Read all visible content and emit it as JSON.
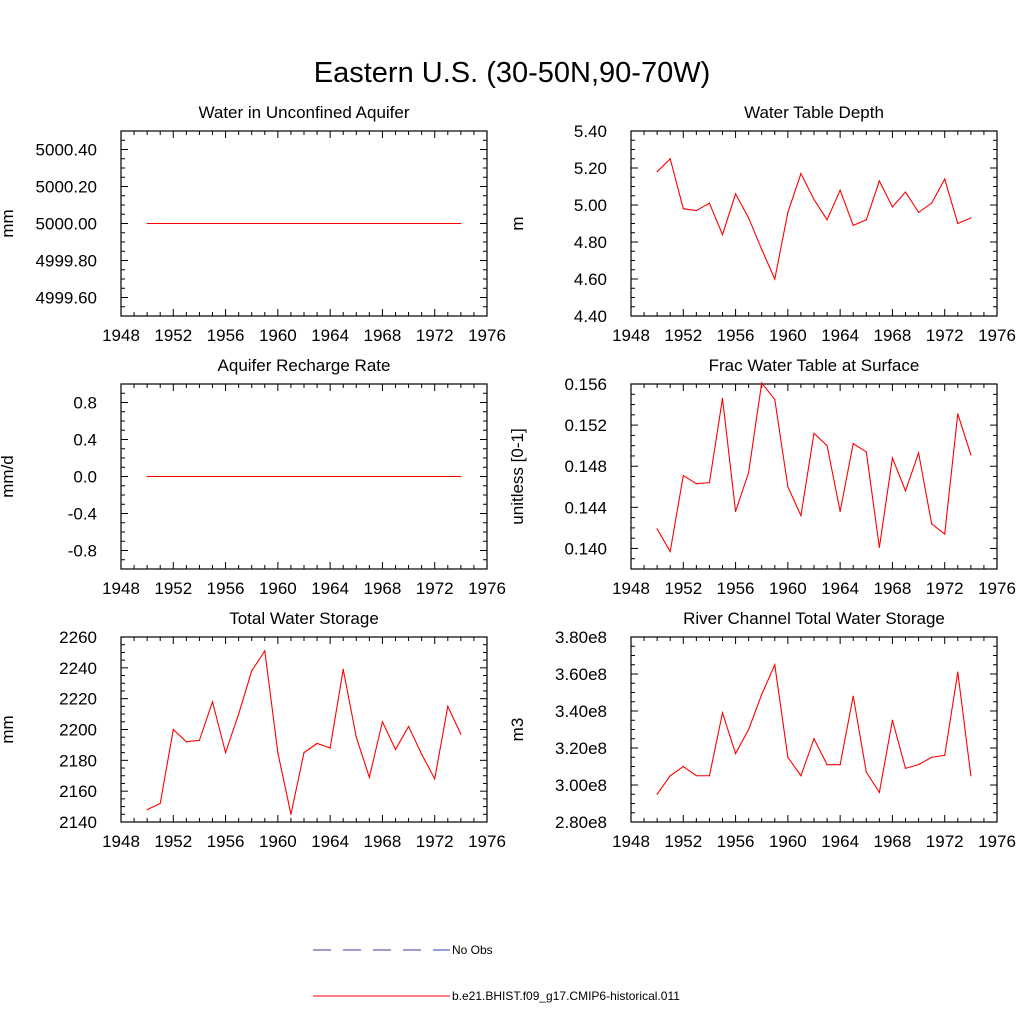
{
  "figure": {
    "title": "Eastern U.S. (30-50N,90-70W)"
  },
  "legend": {
    "entries": [
      {
        "label": "No Obs",
        "color": "#3a3aa8",
        "dash": true
      },
      {
        "label": "b.e21.BHIST.f09_g17.CMIP6-historical.011",
        "color": "#ff0000",
        "dash": false
      }
    ]
  },
  "chart_data": [
    {
      "type": "line",
      "title": "Water in Unconfined Aquifer",
      "ylabel": "mm",
      "xlim": [
        1948,
        1976
      ],
      "ylim": [
        4999.5,
        5000.5
      ],
      "xticks": [
        1948,
        1952,
        1956,
        1960,
        1964,
        1968,
        1972,
        1976
      ],
      "yticks": [
        4999.6,
        4999.8,
        5000.0,
        5000.2,
        5000.4
      ],
      "ytick_labels": [
        "4999.60",
        "4999.80",
        "5000.00",
        "5000.20",
        "5000.40"
      ],
      "series": [
        {
          "color": "#ff0000",
          "x": [
            1950,
            1974
          ],
          "y": [
            5000.0,
            5000.0
          ]
        }
      ]
    },
    {
      "type": "line",
      "title": "Water Table Depth",
      "ylabel": "m",
      "xlim": [
        1948,
        1976
      ],
      "ylim": [
        4.4,
        5.4
      ],
      "xticks": [
        1948,
        1952,
        1956,
        1960,
        1964,
        1968,
        1972,
        1976
      ],
      "yticks": [
        4.4,
        4.6,
        4.8,
        5.0,
        5.2,
        5.4
      ],
      "ytick_labels": [
        "4.40",
        "4.60",
        "4.80",
        "5.00",
        "5.20",
        "5.40"
      ],
      "series": [
        {
          "color": "#ff0000",
          "x": [
            1950,
            1951,
            1952,
            1953,
            1954,
            1955,
            1956,
            1957,
            1958,
            1959,
            1960,
            1961,
            1962,
            1963,
            1964,
            1965,
            1966,
            1967,
            1968,
            1969,
            1970,
            1971,
            1972,
            1973,
            1974
          ],
          "y": [
            5.18,
            5.25,
            4.98,
            4.97,
            5.01,
            4.84,
            5.06,
            4.93,
            4.76,
            4.6,
            4.96,
            5.17,
            5.03,
            4.92,
            5.08,
            4.89,
            4.92,
            5.13,
            4.99,
            5.07,
            4.96,
            5.01,
            5.14,
            4.9,
            4.93
          ]
        }
      ]
    },
    {
      "type": "line",
      "title": "Aquifer Recharge Rate",
      "ylabel": "mm/d",
      "xlim": [
        1948,
        1976
      ],
      "ylim": [
        -1.0,
        1.0
      ],
      "xticks": [
        1948,
        1952,
        1956,
        1960,
        1964,
        1968,
        1972,
        1976
      ],
      "yticks": [
        -0.8,
        -0.4,
        0.0,
        0.4,
        0.8
      ],
      "ytick_labels": [
        "-0.8",
        "-0.4",
        "0.0",
        "0.4",
        "0.8"
      ],
      "series": [
        {
          "color": "#ff0000",
          "x": [
            1950,
            1974
          ],
          "y": [
            0.0,
            0.0
          ]
        }
      ]
    },
    {
      "type": "line",
      "title": "Frac Water Table at Surface",
      "ylabel": "unitless [0-1]",
      "xlim": [
        1948,
        1976
      ],
      "ylim": [
        0.138,
        0.156
      ],
      "xticks": [
        1948,
        1952,
        1956,
        1960,
        1964,
        1968,
        1972,
        1976
      ],
      "yticks": [
        0.14,
        0.144,
        0.148,
        0.152,
        0.156
      ],
      "ytick_labels": [
        "0.140",
        "0.144",
        "0.148",
        "0.152",
        "0.156"
      ],
      "series": [
        {
          "color": "#ff0000",
          "x": [
            1950,
            1951,
            1952,
            1953,
            1954,
            1955,
            1956,
            1957,
            1958,
            1959,
            1960,
            1961,
            1962,
            1963,
            1964,
            1965,
            1966,
            1967,
            1968,
            1969,
            1970,
            1971,
            1972,
            1973,
            1974
          ],
          "y": [
            0.1419,
            0.1397,
            0.1471,
            0.1463,
            0.1464,
            0.1546,
            0.1436,
            0.1474,
            0.1561,
            0.1545,
            0.146,
            0.1432,
            0.1512,
            0.15,
            0.1436,
            0.1502,
            0.1494,
            0.1401,
            0.1488,
            0.1456,
            0.1493,
            0.1424,
            0.1414,
            0.1531,
            0.1491
          ]
        }
      ]
    },
    {
      "type": "line",
      "title": "Total Water Storage",
      "ylabel": "mm",
      "xlim": [
        1948,
        1976
      ],
      "ylim": [
        2140,
        2260
      ],
      "xticks": [
        1948,
        1952,
        1956,
        1960,
        1964,
        1968,
        1972,
        1976
      ],
      "yticks": [
        2140,
        2160,
        2180,
        2200,
        2220,
        2240,
        2260
      ],
      "ytick_labels": [
        "2140",
        "2160",
        "2180",
        "2200",
        "2220",
        "2240",
        "2260"
      ],
      "series": [
        {
          "color": "#ff0000",
          "x": [
            1950,
            1951,
            1952,
            1953,
            1954,
            1955,
            1956,
            1957,
            1958,
            1959,
            1960,
            1961,
            1962,
            1963,
            1964,
            1965,
            1966,
            1967,
            1968,
            1969,
            1970,
            1971,
            1972,
            1973,
            1974
          ],
          "y": [
            2148,
            2152,
            2200,
            2192,
            2193,
            2218,
            2185,
            2210,
            2238,
            2251,
            2185,
            2145,
            2185,
            2191,
            2188,
            2239,
            2195,
            2169,
            2205,
            2187,
            2202,
            2184,
            2168,
            2215,
            2197
          ]
        }
      ]
    },
    {
      "type": "line",
      "title": "River Channel Total Water Storage",
      "ylabel": "m3",
      "xlim": [
        1948,
        1976
      ],
      "ylim": [
        280000000.0,
        380000000.0
      ],
      "xticks": [
        1948,
        1952,
        1956,
        1960,
        1964,
        1968,
        1972,
        1976
      ],
      "yticks": [
        280000000.0,
        300000000.0,
        320000000.0,
        340000000.0,
        360000000.0,
        380000000.0
      ],
      "ytick_labels": [
        "2.80e8",
        "3.00e8",
        "3.20e8",
        "3.40e8",
        "3.60e8",
        "3.80e8"
      ],
      "series": [
        {
          "color": "#ff0000",
          "x": [
            1950,
            1951,
            1952,
            1953,
            1954,
            1955,
            1956,
            1957,
            1958,
            1959,
            1960,
            1961,
            1962,
            1963,
            1964,
            1965,
            1966,
            1967,
            1968,
            1969,
            1970,
            1971,
            1972,
            1973,
            1974
          ],
          "y": [
            295000000.0,
            305000000.0,
            310000000.0,
            305000000.0,
            305000000.0,
            339000000.0,
            317000000.0,
            330000000.0,
            349000000.0,
            365000000.0,
            315000000.0,
            305000000.0,
            325000000.0,
            311000000.0,
            311000000.0,
            348000000.0,
            307000000.0,
            296000000.0,
            335000000.0,
            309000000.0,
            311000000.0,
            315000000.0,
            316000000.0,
            361000000.0,
            305000000.0
          ]
        }
      ]
    }
  ]
}
